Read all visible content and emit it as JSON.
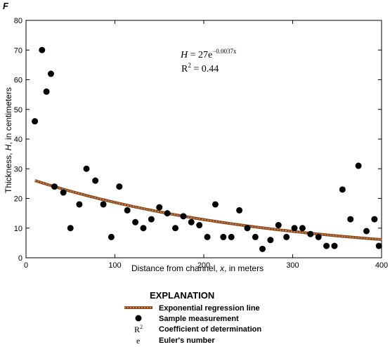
{
  "panel_label": "F",
  "chart_data": {
    "type": "scatter",
    "xlabel_prefix": "Distance from channel, ",
    "xlabel_var": "x",
    "xlabel_suffix": ", in meters",
    "ylabel_prefix": "Thickness, ",
    "ylabel_var": "H",
    "ylabel_suffix": ", in centimeters",
    "xlim": [
      0,
      400
    ],
    "ylim": [
      0,
      80
    ],
    "x_ticks": [
      0,
      100,
      200,
      300,
      400
    ],
    "y_ticks": [
      0,
      10,
      20,
      30,
      40,
      50,
      60,
      70,
      80
    ],
    "equation": {
      "lhs": "H",
      "eq": " = 27e",
      "exponent": "−0.0037x",
      "r2_label": "R",
      "r2_sup": "2",
      "r2_value": " = 0.44"
    },
    "regression": {
      "a": 27,
      "b": -0.0037,
      "x_start": 10,
      "x_end": 400
    },
    "points": [
      {
        "x": 10,
        "y": 46
      },
      {
        "x": 18,
        "y": 70
      },
      {
        "x": 23,
        "y": 56
      },
      {
        "x": 28,
        "y": 62
      },
      {
        "x": 32,
        "y": 24
      },
      {
        "x": 42,
        "y": 22
      },
      {
        "x": 50,
        "y": 10
      },
      {
        "x": 60,
        "y": 18
      },
      {
        "x": 68,
        "y": 30
      },
      {
        "x": 78,
        "y": 26
      },
      {
        "x": 87,
        "y": 18
      },
      {
        "x": 96,
        "y": 7
      },
      {
        "x": 105,
        "y": 24
      },
      {
        "x": 114,
        "y": 16
      },
      {
        "x": 123,
        "y": 12
      },
      {
        "x": 132,
        "y": 10
      },
      {
        "x": 141,
        "y": 13
      },
      {
        "x": 150,
        "y": 17
      },
      {
        "x": 159,
        "y": 15
      },
      {
        "x": 168,
        "y": 10
      },
      {
        "x": 177,
        "y": 14
      },
      {
        "x": 186,
        "y": 12
      },
      {
        "x": 195,
        "y": 11
      },
      {
        "x": 204,
        "y": 7
      },
      {
        "x": 213,
        "y": 18
      },
      {
        "x": 222,
        "y": 7
      },
      {
        "x": 231,
        "y": 7
      },
      {
        "x": 240,
        "y": 16
      },
      {
        "x": 249,
        "y": 10
      },
      {
        "x": 258,
        "y": 7
      },
      {
        "x": 266,
        "y": 3
      },
      {
        "x": 275,
        "y": 6
      },
      {
        "x": 284,
        "y": 11
      },
      {
        "x": 293,
        "y": 7
      },
      {
        "x": 302,
        "y": 10
      },
      {
        "x": 311,
        "y": 10
      },
      {
        "x": 320,
        "y": 8
      },
      {
        "x": 329,
        "y": 7
      },
      {
        "x": 338,
        "y": 4
      },
      {
        "x": 347,
        "y": 4
      },
      {
        "x": 356,
        "y": 23
      },
      {
        "x": 365,
        "y": 13
      },
      {
        "x": 374,
        "y": 31
      },
      {
        "x": 383,
        "y": 9
      },
      {
        "x": 392,
        "y": 13
      },
      {
        "x": 397,
        "y": 4
      }
    ]
  },
  "legend": {
    "title": "EXPLANATION",
    "items": [
      {
        "symbol": "line",
        "label": "Exponential regression line"
      },
      {
        "symbol": "dot",
        "label": "Sample measurement"
      },
      {
        "symbol": "R2",
        "sym_text": "R",
        "sym_sup": "2",
        "label": "Coefficient of determination"
      },
      {
        "symbol": "e",
        "sym_text": "e",
        "label": "Euler's number"
      }
    ]
  },
  "colors": {
    "regression_outer": "#8a4a1e",
    "regression_inner": "#e8a070",
    "points": "#000000",
    "axis": "#000000"
  }
}
